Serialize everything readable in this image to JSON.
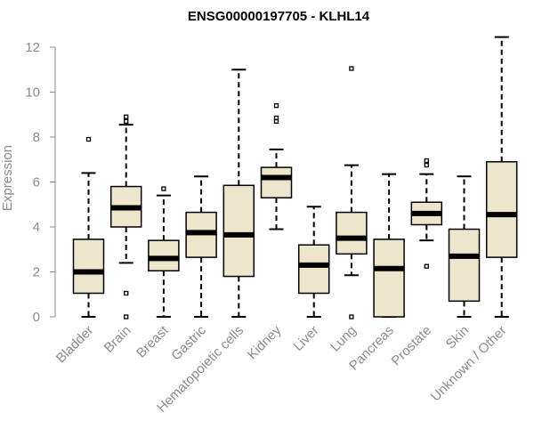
{
  "chart_data": {
    "type": "boxplot",
    "title": "ENSG00000197705 - KLHL14",
    "xlabel": "",
    "ylabel": "Expression",
    "ylim": [
      0,
      12
    ],
    "yticks": [
      0,
      2,
      4,
      6,
      8,
      10,
      12
    ],
    "grid": false,
    "colors": {
      "box_fill": "#ede6cd",
      "box_stroke": "#000000",
      "median": "#000000",
      "axis": "#8c8c8c"
    },
    "categories": [
      "Bladder",
      "Brain",
      "Breast",
      "Gastric",
      "Hematopoietic cells",
      "Kidney",
      "Liver",
      "Lung",
      "Pancreas",
      "Prostate",
      "Skin",
      "Unknown / Other"
    ],
    "boxes": [
      {
        "category": "Bladder",
        "min": 0.0,
        "q1": 1.05,
        "median": 2.0,
        "q3": 3.45,
        "max": 6.4,
        "outliers": [
          7.9
        ]
      },
      {
        "category": "Brain",
        "min": 2.4,
        "q1": 4.0,
        "median": 4.85,
        "q3": 5.8,
        "max": 8.55,
        "outliers": [
          8.7,
          8.9,
          1.05,
          0.0
        ]
      },
      {
        "category": "Breast",
        "min": 0.0,
        "q1": 2.05,
        "median": 2.6,
        "q3": 3.4,
        "max": 5.4,
        "outliers": [
          5.7
        ]
      },
      {
        "category": "Gastric",
        "min": 0.0,
        "q1": 2.65,
        "median": 3.75,
        "q3": 4.65,
        "max": 6.25,
        "outliers": []
      },
      {
        "category": "Hematopoietic cells",
        "min": 0.0,
        "q1": 1.8,
        "median": 3.65,
        "q3": 5.85,
        "max": 11.0,
        "outliers": []
      },
      {
        "category": "Kidney",
        "min": 3.9,
        "q1": 5.3,
        "median": 6.2,
        "q3": 6.65,
        "max": 7.45,
        "outliers": [
          8.7,
          8.85,
          9.4
        ]
      },
      {
        "category": "Liver",
        "min": 0.0,
        "q1": 1.05,
        "median": 2.3,
        "q3": 3.2,
        "max": 4.9,
        "outliers": []
      },
      {
        "category": "Lung",
        "min": 1.85,
        "q1": 2.8,
        "median": 3.5,
        "q3": 4.65,
        "max": 6.75,
        "outliers": [
          11.05,
          0.0
        ]
      },
      {
        "category": "Pancreas",
        "min": 0.0,
        "q1": 0.0,
        "median": 2.15,
        "q3": 3.45,
        "max": 6.35,
        "outliers": []
      },
      {
        "category": "Prostate",
        "min": 3.4,
        "q1": 4.1,
        "median": 4.6,
        "q3": 5.1,
        "max": 6.35,
        "outliers": [
          6.75,
          6.95,
          2.25
        ]
      },
      {
        "category": "Skin",
        "min": 0.0,
        "q1": 0.7,
        "median": 2.7,
        "q3": 3.9,
        "max": 6.25,
        "outliers": []
      },
      {
        "category": "Unknown / Other",
        "min": 0.0,
        "q1": 2.65,
        "median": 4.55,
        "q3": 6.9,
        "max": 12.45,
        "outliers": []
      }
    ]
  }
}
